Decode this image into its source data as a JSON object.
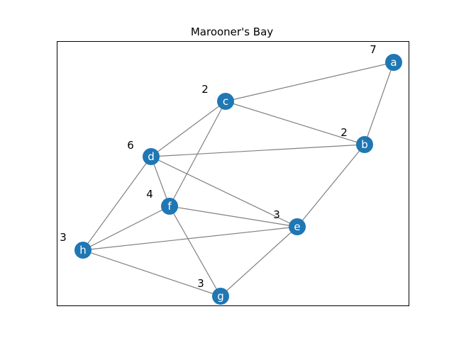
{
  "graph": {
    "title": "Marooner's Bay",
    "node_color": "#1f77b4",
    "edge_color": "#808080",
    "nodes": [
      {
        "id": "a",
        "label": "a",
        "weight": "7"
      },
      {
        "id": "b",
        "label": "b",
        "weight": "2"
      },
      {
        "id": "c",
        "label": "c",
        "weight": "2"
      },
      {
        "id": "d",
        "label": "d",
        "weight": "6"
      },
      {
        "id": "e",
        "label": "e",
        "weight": "3"
      },
      {
        "id": "f",
        "label": "f",
        "weight": "4"
      },
      {
        "id": "g",
        "label": "g",
        "weight": "3"
      },
      {
        "id": "h",
        "label": "h",
        "weight": "3"
      }
    ],
    "edges": [
      [
        "a",
        "c"
      ],
      [
        "a",
        "b"
      ],
      [
        "c",
        "b"
      ],
      [
        "c",
        "d"
      ],
      [
        "c",
        "f"
      ],
      [
        "d",
        "b"
      ],
      [
        "d",
        "f"
      ],
      [
        "d",
        "e"
      ],
      [
        "d",
        "h"
      ],
      [
        "b",
        "e"
      ],
      [
        "f",
        "e"
      ],
      [
        "f",
        "h"
      ],
      [
        "f",
        "g"
      ],
      [
        "h",
        "e"
      ],
      [
        "h",
        "g"
      ],
      [
        "e",
        "g"
      ]
    ]
  }
}
